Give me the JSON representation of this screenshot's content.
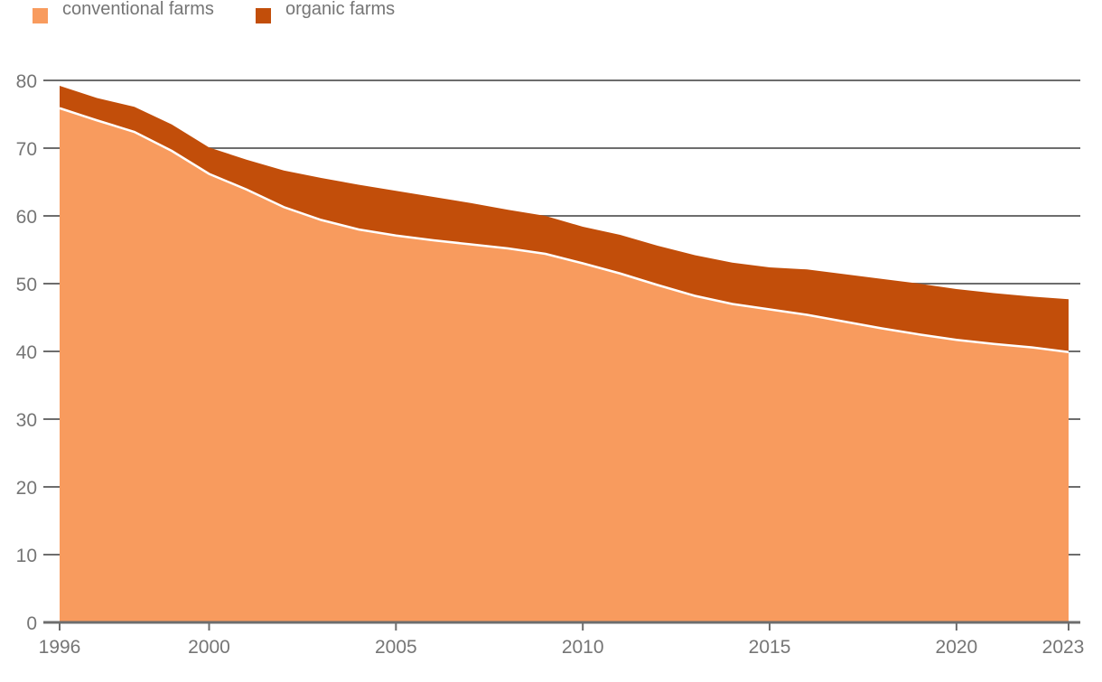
{
  "legend": {
    "items": [
      {
        "label": "conventional farms",
        "color": "#F89B5E"
      },
      {
        "label": "organic farms",
        "color": "#C24E0A"
      }
    ]
  },
  "chart_data": {
    "type": "area",
    "stacked": true,
    "title": "",
    "xlabel": "",
    "ylabel": "",
    "x": [
      1996,
      1997,
      1998,
      1999,
      2000,
      2001,
      2002,
      2003,
      2004,
      2005,
      2006,
      2007,
      2008,
      2009,
      2010,
      2011,
      2012,
      2013,
      2014,
      2015,
      2016,
      2017,
      2018,
      2019,
      2020,
      2021,
      2022,
      2023
    ],
    "series": [
      {
        "name": "conventional farms",
        "color": "#F89B5E",
        "values": [
          75.9,
          74.1,
          72.4,
          69.6,
          66.2,
          63.9,
          61.3,
          59.4,
          58.0,
          57.1,
          56.4,
          55.8,
          55.2,
          54.4,
          53.0,
          51.5,
          49.8,
          48.2,
          47.0,
          46.2,
          45.4,
          44.4,
          43.4,
          42.5,
          41.7,
          41.1,
          40.6,
          39.9
        ]
      },
      {
        "name": "organic farms",
        "color": "#C24E0A",
        "values": [
          3.3,
          3.3,
          3.7,
          3.9,
          3.9,
          4.4,
          5.4,
          6.2,
          6.6,
          6.6,
          6.4,
          6.1,
          5.7,
          5.6,
          5.4,
          5.7,
          5.8,
          6.0,
          6.1,
          6.2,
          6.7,
          7.0,
          7.3,
          7.5,
          7.5,
          7.5,
          7.5,
          7.8
        ]
      }
    ],
    "ylim": [
      0,
      80
    ],
    "yticks": [
      0,
      10,
      20,
      30,
      40,
      50,
      60,
      70,
      80
    ],
    "xticks": [
      1996,
      2000,
      2005,
      2010,
      2015,
      2020,
      2023
    ],
    "grid": "horizontal",
    "legend_position": "top-left",
    "axis_color": "#6D6D6D",
    "label_color": "#757575",
    "separator_color": "#FFFFFF",
    "background_color": "#FFFFFF"
  }
}
